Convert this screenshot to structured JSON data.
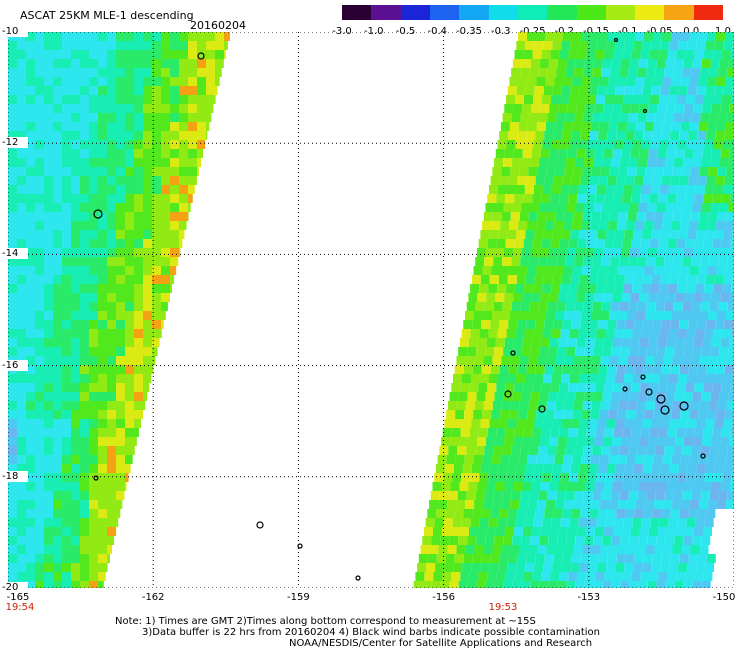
{
  "title": "ASCAT 25KM MLE-1 descending",
  "date": "20160204",
  "colorbar": {
    "labels": [
      "-3.0",
      "-1.0",
      "-0.5",
      "-0.4",
      "-0.35",
      "-0.3",
      "-0.25",
      "-0.2",
      "-0.15",
      "-0.1",
      "-0.05",
      "0.0",
      "1.0"
    ],
    "colors": [
      "#2a0033",
      "#5a1090",
      "#1a24d8",
      "#1c64f0",
      "#14a8f4",
      "#10dcec",
      "#10ecb8",
      "#22e858",
      "#4ce818",
      "#a6ec14",
      "#ecec14",
      "#f6a414",
      "#f02a10"
    ]
  },
  "map": {
    "lat_labels": [
      "-10",
      "-12",
      "-14",
      "-16",
      "-18",
      "-20"
    ],
    "lon_labels": [
      "-165",
      "-162",
      "-159",
      "-156",
      "-153",
      "-150"
    ],
    "swaths": [
      {
        "name": "west",
        "time": "19:54"
      },
      {
        "name": "east",
        "time": "19:53"
      }
    ]
  },
  "notes": [
    "Note: 1) Times are GMT 2)Times along bottom correspond to measurement at ~15S",
    "3)Data buffer is 22 hrs from 20160204 4) Black wind barbs indicate possible contamination",
    "NOAA/NESDIS/Center for Satellite Applications and Research"
  ]
}
